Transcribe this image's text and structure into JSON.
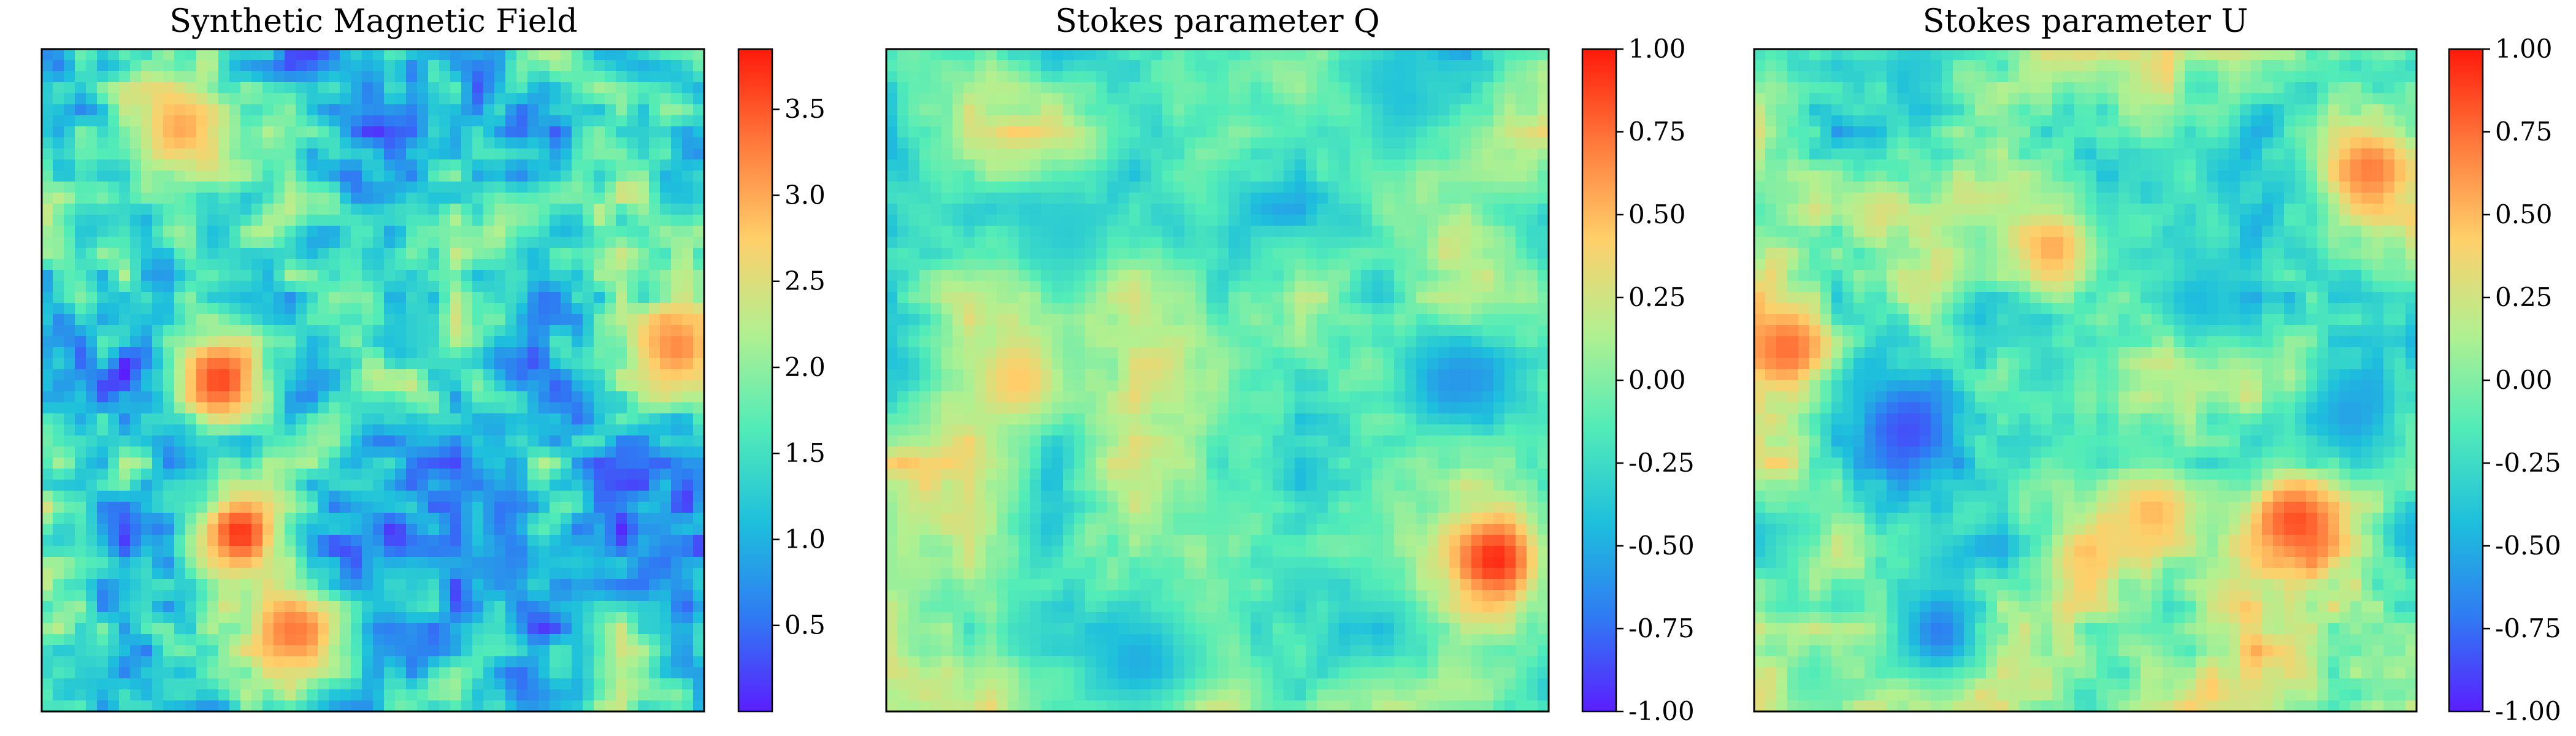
{
  "colormap": [
    "#5a1fff",
    "#2f7bf3",
    "#1ec0dc",
    "#52ecb8",
    "#b2f090",
    "#ffcf6a",
    "#ff7a3c",
    "#ff1a0a"
  ],
  "chart_data": [
    {
      "type": "heatmap",
      "title": "Synthetic Magnetic Field",
      "xlabel": "",
      "ylabel": "",
      "colorbar": {
        "range": [
          0.0,
          3.85
        ],
        "ticks": [
          0.5,
          1.0,
          1.5,
          2.0,
          2.5,
          3.0,
          3.5
        ],
        "tick_labels": [
          "0.5",
          "1.0",
          "1.5",
          "2.0",
          "2.5",
          "3.0",
          "3.5"
        ]
      },
      "field": {
        "mean": 1.2,
        "smoothness": 0.35,
        "hotspots": [
          [
            0.27,
            0.5,
            3.6
          ],
          [
            0.3,
            0.73,
            3.7
          ],
          [
            0.38,
            0.88,
            3.3
          ],
          [
            0.96,
            0.45,
            3.2
          ],
          [
            0.21,
            0.12,
            3.0
          ]
        ]
      }
    },
    {
      "type": "heatmap",
      "title": "Stokes parameter Q",
      "xlabel": "",
      "ylabel": "",
      "colorbar": {
        "range": [
          -1.0,
          1.0
        ],
        "ticks": [
          -1.0,
          -0.75,
          -0.5,
          -0.25,
          0.0,
          0.25,
          0.5,
          0.75,
          1.0
        ],
        "tick_labels": [
          "-1.00",
          "-0.75",
          "-0.50",
          "-0.25",
          "0.00",
          "0.25",
          "0.50",
          "0.75",
          "1.00"
        ]
      },
      "field": {
        "mean": -0.05,
        "smoothness": 1.0,
        "hotspots": [
          [
            0.92,
            0.77,
            0.95
          ],
          [
            0.2,
            0.5,
            0.45
          ],
          [
            0.87,
            0.5,
            -0.6
          ],
          [
            0.38,
            0.92,
            -0.5
          ],
          [
            0.78,
            0.08,
            -0.4
          ],
          [
            0.27,
            0.28,
            -0.35
          ]
        ]
      }
    },
    {
      "type": "heatmap",
      "title": "Stokes parameter U",
      "xlabel": "",
      "ylabel": "",
      "colorbar": {
        "range": [
          -1.0,
          1.0
        ],
        "ticks": [
          -1.0,
          -0.75,
          -0.5,
          -0.25,
          0.0,
          0.25,
          0.5,
          0.75,
          1.0
        ],
        "tick_labels": [
          "-1.00",
          "-0.75",
          "-0.50",
          "-0.25",
          "0.00",
          "0.25",
          "0.50",
          "0.75",
          "1.00"
        ]
      },
      "field": {
        "mean": 0.0,
        "smoothness": 0.8,
        "hotspots": [
          [
            0.82,
            0.71,
            0.85
          ],
          [
            0.05,
            0.45,
            0.75
          ],
          [
            0.93,
            0.18,
            0.7
          ],
          [
            0.45,
            0.3,
            0.55
          ],
          [
            0.6,
            0.7,
            0.5
          ],
          [
            0.23,
            0.58,
            -0.85
          ],
          [
            0.28,
            0.88,
            -0.7
          ],
          [
            0.9,
            0.55,
            -0.55
          ],
          [
            0.67,
            0.38,
            -0.45
          ]
        ]
      }
    }
  ]
}
